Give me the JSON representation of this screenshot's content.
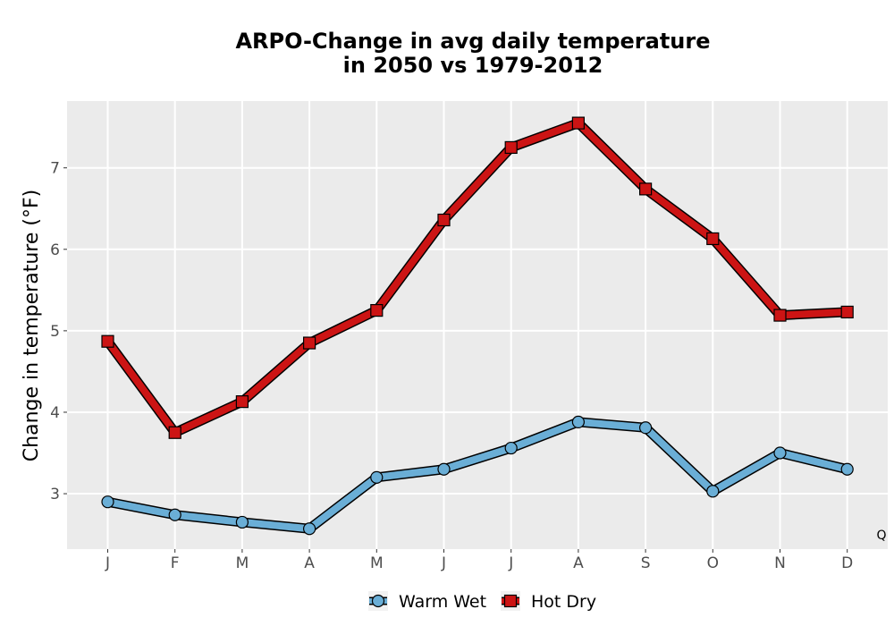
{
  "chart_data": {
    "type": "line",
    "title_line1": "ARPO-Change in avg daily temperature",
    "title_line2": "in 2050 vs 1979-2012",
    "xlabel": "",
    "ylabel": "Change in temperature (°F)",
    "categories": [
      "J",
      "F",
      "M",
      "A",
      "M",
      "J",
      "J",
      "A",
      "S",
      "O",
      "N",
      "D"
    ],
    "ylim": [
      2.32,
      7.82
    ],
    "yticks": [
      3,
      4,
      5,
      6,
      7
    ],
    "grid": true,
    "legend_position": "bottom",
    "annotation": "Q",
    "series": [
      {
        "name": "Warm Wet",
        "marker": "circle",
        "color": "#6aaed6",
        "values": [
          2.9,
          2.74,
          2.65,
          2.57,
          3.2,
          3.3,
          3.56,
          3.88,
          3.81,
          3.03,
          3.5,
          3.3
        ]
      },
      {
        "name": "Hot Dry",
        "marker": "square",
        "color": "#cc1414",
        "values": [
          4.87,
          3.75,
          4.13,
          4.85,
          5.25,
          6.36,
          7.25,
          7.55,
          6.74,
          6.13,
          5.19,
          5.23
        ]
      }
    ]
  }
}
